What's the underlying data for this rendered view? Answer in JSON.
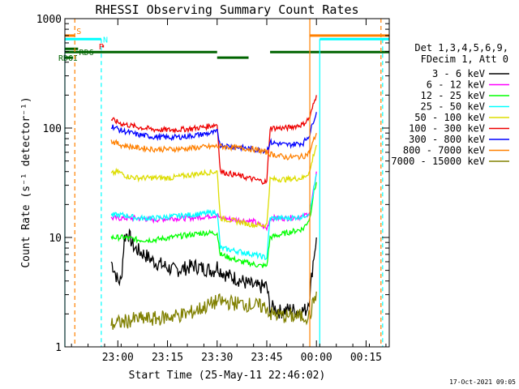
{
  "chart_data": {
    "type": "line",
    "title": "RHESSI Observing Summary Count Rates",
    "xlabel": "Start Time (25-May-11 22:46:02)",
    "ylabel": "Count Rate (s⁻¹ detector⁻¹)",
    "xscale": "time (minutes since start time)",
    "yscale": "log",
    "ylim": [
      1,
      1000
    ],
    "xlim_minutes": [
      -2,
      96
    ],
    "x_ticks": [
      {
        "minute": 14,
        "label": "23:00"
      },
      {
        "minute": 29,
        "label": "23:15"
      },
      {
        "minute": 44,
        "label": "23:30"
      },
      {
        "minute": 59,
        "label": "23:45"
      },
      {
        "minute": 74,
        "label": "00:00"
      },
      {
        "minute": 89,
        "label": "00:15"
      }
    ],
    "y_ticks": [
      {
        "value": 1,
        "label": "1"
      },
      {
        "value": 10,
        "label": "10"
      },
      {
        "value": 100,
        "label": "100"
      },
      {
        "value": 1000,
        "label": "1000"
      }
    ],
    "legend": {
      "placement": "right",
      "header_line1": "Det 1,3,4,5,6,9,",
      "header_line2": "FDecim 1, Att 0"
    },
    "series": [
      {
        "name": "3 - 6 keV",
        "color": "#000000",
        "x": [
          12,
          13,
          14,
          15,
          16,
          17,
          19,
          22,
          25,
          28,
          31,
          34,
          37,
          40,
          43,
          44,
          45,
          47,
          50,
          53,
          56,
          59,
          60,
          61,
          63,
          66,
          69,
          71,
          72,
          73,
          74
        ],
        "y": [
          6,
          5,
          4,
          4,
          10,
          11,
          8,
          7,
          6,
          5.5,
          5,
          5.2,
          5.5,
          5.2,
          5,
          5.5,
          5,
          4.5,
          4.2,
          3.8,
          3.5,
          3.6,
          2.2,
          2.3,
          2.1,
          2.2,
          2.1,
          2.2,
          3,
          6,
          10
        ]
      },
      {
        "name": "6 - 12 keV",
        "color": "#ff00ff",
        "x": [
          12,
          16,
          20,
          25,
          30,
          35,
          40,
          44,
          45,
          50,
          55,
          59,
          60,
          65,
          70,
          72,
          73,
          74
        ],
        "y": [
          15,
          15,
          15,
          14.5,
          15,
          15,
          15.5,
          16,
          15,
          14.5,
          14,
          12,
          15,
          15,
          15.5,
          17,
          25,
          40
        ]
      },
      {
        "name": "12 - 25 keV",
        "color": "#00ff00",
        "x": [
          12,
          16,
          20,
          25,
          30,
          35,
          40,
          44,
          45,
          48,
          51,
          54,
          57,
          59,
          60,
          65,
          70,
          72,
          73,
          74
        ],
        "y": [
          10,
          10,
          9.5,
          9.5,
          10,
          10.5,
          11,
          11,
          7,
          6.5,
          6,
          5.8,
          5.5,
          5.5,
          10,
          11,
          12,
          15,
          24,
          32
        ]
      },
      {
        "name": "25 - 50 keV",
        "color": "#00ffff",
        "x": [
          12,
          16,
          20,
          25,
          30,
          35,
          40,
          44,
          45,
          50,
          55,
          59,
          60,
          65,
          70,
          72,
          73,
          74
        ],
        "y": [
          16,
          16,
          15,
          15,
          15.5,
          16,
          16.5,
          17,
          8,
          7.5,
          7,
          6.5,
          15,
          15,
          15.5,
          17,
          25,
          38
        ]
      },
      {
        "name": "50 - 100 keV",
        "color": "#dddd00",
        "x": [
          12,
          14,
          17,
          20,
          25,
          30,
          35,
          40,
          44,
          45,
          50,
          55,
          59,
          60,
          65,
          70,
          72,
          73,
          74
        ],
        "y": [
          38,
          40,
          36,
          35,
          35,
          35,
          37,
          39,
          40,
          15,
          14,
          13,
          13,
          34,
          34,
          35,
          40,
          55,
          70
        ]
      },
      {
        "name": "100 - 300 keV",
        "color": "#ee0000",
        "x": [
          12,
          15,
          20,
          25,
          30,
          35,
          40,
          44,
          45,
          50,
          55,
          59,
          60,
          65,
          70,
          72,
          73,
          74
        ],
        "y": [
          120,
          110,
          102,
          97,
          96,
          98,
          102,
          108,
          40,
          37,
          34,
          32,
          100,
          100,
          108,
          125,
          160,
          200
        ]
      },
      {
        "name": "300 - 800 keV",
        "color": "#0000ff",
        "x": [
          12,
          15,
          20,
          25,
          30,
          35,
          40,
          44,
          45,
          50,
          55,
          59,
          60,
          65,
          70,
          72,
          73,
          74
        ],
        "y": [
          105,
          95,
          87,
          83,
          82,
          84,
          88,
          92,
          70,
          67,
          64,
          62,
          74,
          70,
          73,
          88,
          115,
          140
        ]
      },
      {
        "name": "800 - 7000 keV",
        "color": "#ff8000",
        "x": [
          12,
          15,
          20,
          25,
          30,
          35,
          40,
          44,
          45,
          50,
          55,
          59,
          60,
          65,
          70,
          72,
          73,
          74
        ],
        "y": [
          76,
          70,
          66,
          64,
          64,
          65,
          67,
          68,
          68,
          66,
          64,
          60,
          58,
          54,
          55,
          60,
          75,
          90
        ]
      },
      {
        "name": "7000 - 15000 keV",
        "color": "#808000",
        "x": [
          12,
          16,
          20,
          25,
          30,
          35,
          40,
          44,
          45,
          50,
          55,
          59,
          60,
          65,
          70,
          72,
          73,
          74
        ],
        "y": [
          1.6,
          1.7,
          1.8,
          1.8,
          1.9,
          2.0,
          2.3,
          2.6,
          2.6,
          2.5,
          2.4,
          2.3,
          2.0,
          1.9,
          1.9,
          1.9,
          2.5,
          3.2
        ]
      }
    ],
    "state_bars": [
      {
        "label": "S",
        "color": "#ff8000",
        "level": 700,
        "segments": [
          [
            -2,
            1
          ],
          [
            72,
            96
          ]
        ]
      },
      {
        "label": "N",
        "color": "#00ffff",
        "level": 650,
        "segments": [
          [
            -2,
            9
          ],
          [
            75,
            96
          ]
        ]
      },
      {
        "label": "F",
        "color": "#ee0000",
        "level": 560,
        "segments": [
          [
            9.3,
            9.8
          ]
        ]
      },
      {
        "label": "RD6",
        "color": "#006400",
        "level": 530,
        "segments": [
          [
            -2,
            2
          ]
        ]
      },
      {
        "label": "RD6",
        "color": "#006400",
        "level": 495,
        "segments": [
          [
            -2,
            44
          ],
          [
            60,
            96
          ]
        ]
      },
      {
        "label": "RD6I",
        "color": "#006400",
        "level": 440,
        "segments": [
          [
            -2,
            0.5
          ],
          [
            44,
            53.5
          ]
        ]
      }
    ],
    "vlines": [
      {
        "minute": 1.0,
        "color": "#ff8000",
        "style": "dashed",
        "span": [
          1,
          1000
        ]
      },
      {
        "minute": 9.0,
        "color": "#00ffff",
        "style": "dashed",
        "span": [
          1,
          650
        ]
      },
      {
        "minute": 72.0,
        "color": "#ff8000",
        "style": "solid",
        "span": [
          1,
          1000
        ]
      },
      {
        "minute": 75.0,
        "color": "#00ffff",
        "style": "solid",
        "span": [
          1,
          650
        ]
      },
      {
        "minute": 93.5,
        "color": "#ff8000",
        "style": "dashed",
        "span": [
          1,
          1000
        ]
      },
      {
        "minute": 94.0,
        "color": "#00ffff",
        "style": "dashed",
        "span": [
          1,
          650
        ]
      },
      {
        "minute": -2.0,
        "color": "#00ffff",
        "style": "solid",
        "span": [
          1,
          650
        ]
      }
    ],
    "footer_timestamp": "17-Oct-2021 09:05",
    "grid": false
  }
}
